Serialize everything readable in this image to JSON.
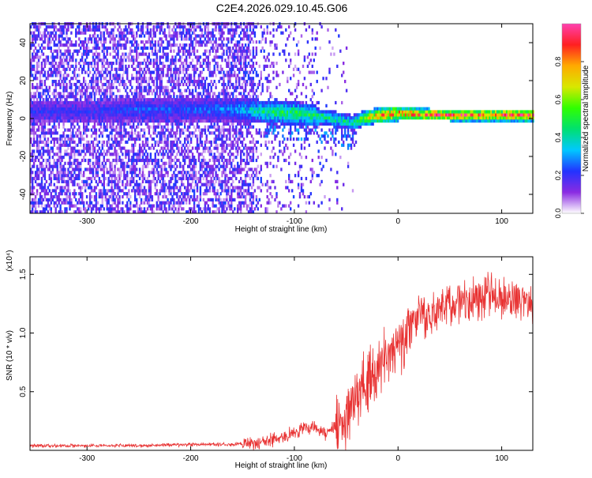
{
  "figure": {
    "title": "C2E4.2026.029.10.45.G06"
  },
  "chart_data": [
    {
      "type": "heatmap",
      "title": "C2E4.2026.029.10.45.G06",
      "xlabel": "Height of straight line (km)",
      "ylabel": "Frequency (Hz)",
      "xlim": [
        -355,
        130
      ],
      "ylim": [
        -50,
        50
      ],
      "xticks": [
        -300,
        -200,
        -100,
        0,
        100
      ],
      "yticks": [
        -40,
        -20,
        0,
        20,
        40
      ],
      "signal_track": {
        "description_points_x": [
          -300,
          -250,
          -200,
          -160,
          -130,
          -100,
          -70,
          -45,
          -30,
          0,
          50,
          100,
          130
        ],
        "center_frequency_hz": [
          3,
          4,
          4,
          4,
          3,
          2,
          0,
          -3,
          0,
          2,
          1,
          1,
          1
        ],
        "peak_amplitude": [
          0.2,
          0.25,
          0.25,
          0.3,
          0.45,
          0.5,
          0.45,
          0.4,
          0.7,
          0.85,
          0.9,
          0.9,
          0.9
        ]
      },
      "colorbar": {
        "label": "Normalized spectral amplitude",
        "range": [
          0,
          1
        ],
        "ticks": [
          "0.0",
          "0.2",
          "0.4",
          "0.6",
          "0.8"
        ],
        "colors": [
          "#ffffff",
          "#8a2be2",
          "#2233ff",
          "#00c8ff",
          "#00e070",
          "#30ff00",
          "#d8e800",
          "#ffaa00",
          "#ff2020",
          "#ff40b0"
        ]
      }
    },
    {
      "type": "line",
      "xlabel": "Height of straight line (km)",
      "ylabel": "SNR (10 * v/v)",
      "multiplier_label": "(x10⁴)",
      "xlim": [
        -355,
        130
      ],
      "ylim": [
        0,
        1.65
      ],
      "xticks": [
        -300,
        -200,
        -100,
        0,
        100
      ],
      "yticks": [
        0.5,
        1.0,
        1.5
      ],
      "ytick_labels": [
        "0.5",
        "1.0",
        "1.5"
      ],
      "color": "#e83232",
      "series": [
        {
          "name": "SNR",
          "x": [
            -355,
            -300,
            -250,
            -200,
            -160,
            -140,
            -120,
            -100,
            -90,
            -80,
            -70,
            -60,
            -50,
            -45,
            -40,
            -35,
            -30,
            -25,
            -20,
            -15,
            -10,
            -5,
            0,
            5,
            10,
            15,
            20,
            30,
            40,
            50,
            60,
            70,
            80,
            90,
            100,
            110,
            120,
            130
          ],
          "y": [
            0.04,
            0.04,
            0.04,
            0.05,
            0.05,
            0.06,
            0.09,
            0.15,
            0.2,
            0.2,
            0.15,
            0.2,
            0.25,
            0.35,
            0.45,
            0.55,
            0.6,
            0.7,
            0.75,
            0.8,
            0.8,
            0.85,
            0.92,
            0.95,
            1.0,
            1.1,
            1.12,
            1.15,
            1.2,
            1.25,
            1.27,
            1.28,
            1.3,
            1.32,
            1.3,
            1.25,
            1.26,
            1.28
          ]
        }
      ]
    }
  ]
}
